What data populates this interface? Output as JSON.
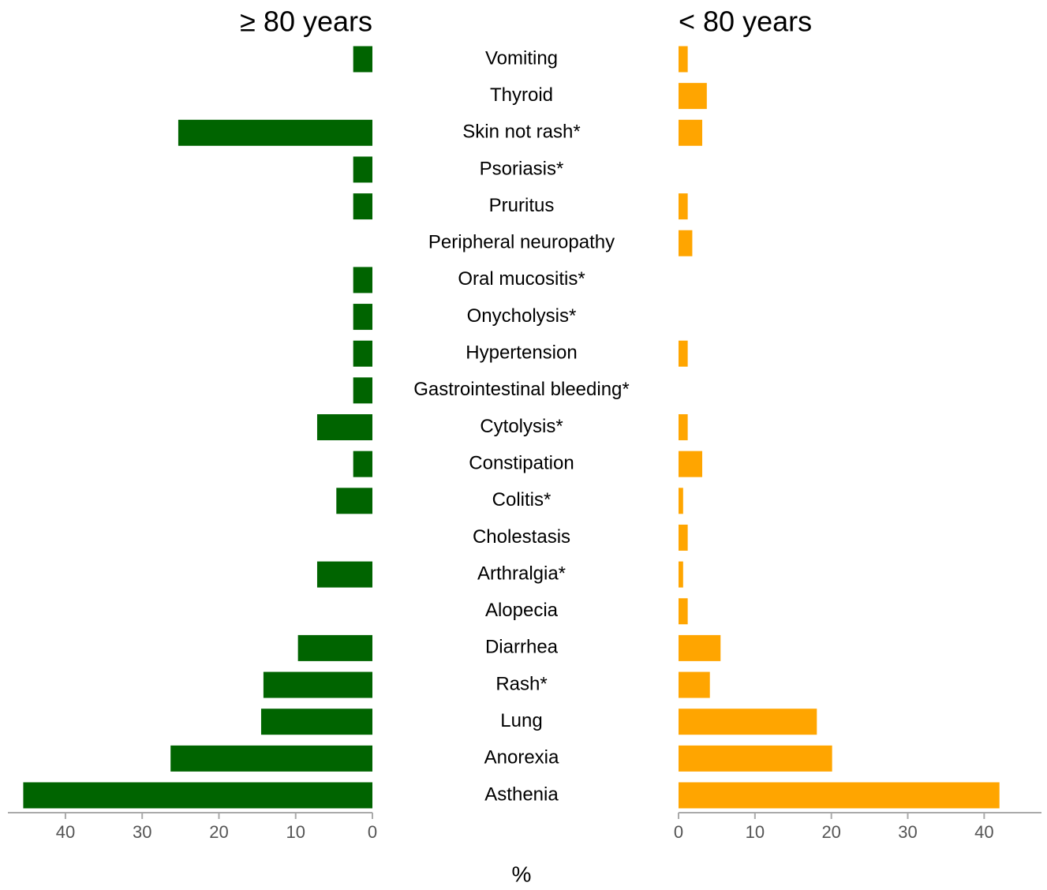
{
  "chart_data": {
    "type": "bar",
    "orientation": "horizontal",
    "categories": [
      "Vomiting",
      "Thyroid",
      "Skin not rash*",
      "Psoriasis*",
      "Pruritus",
      "Peripheral neuropathy",
      "Oral mucositis*",
      "Onycholysis*",
      "Hypertension",
      "Gastrointestinal bleeding*",
      "Cytolysis*",
      "Constipation",
      "Colitis*",
      "Cholestasis",
      "Arthralgia*",
      "Alopecia",
      "Diarrhea",
      "Rash*",
      "Lung",
      "Anorexia",
      "Asthenia"
    ],
    "series": [
      {
        "name": "≥ 80 years",
        "color": "#006400",
        "values": [
          2.5,
          0,
          25.3,
          2.5,
          2.5,
          0,
          2.5,
          2.5,
          2.5,
          2.5,
          7.2,
          2.5,
          4.7,
          0,
          7.2,
          0,
          9.7,
          14.2,
          14.5,
          26.3,
          45.5
        ]
      },
      {
        "name": "< 80 years",
        "color": "#ffa500",
        "values": [
          1.2,
          3.7,
          3.1,
          0,
          1.2,
          1.8,
          0,
          0,
          1.2,
          0,
          1.2,
          3.1,
          0.6,
          1.2,
          0.6,
          1.2,
          5.5,
          4.1,
          18.1,
          20.1,
          42.0
        ]
      }
    ],
    "xlabel": "%",
    "xlim": [
      0,
      47.5
    ],
    "xticks": [
      0,
      10,
      20,
      30,
      40
    ]
  }
}
